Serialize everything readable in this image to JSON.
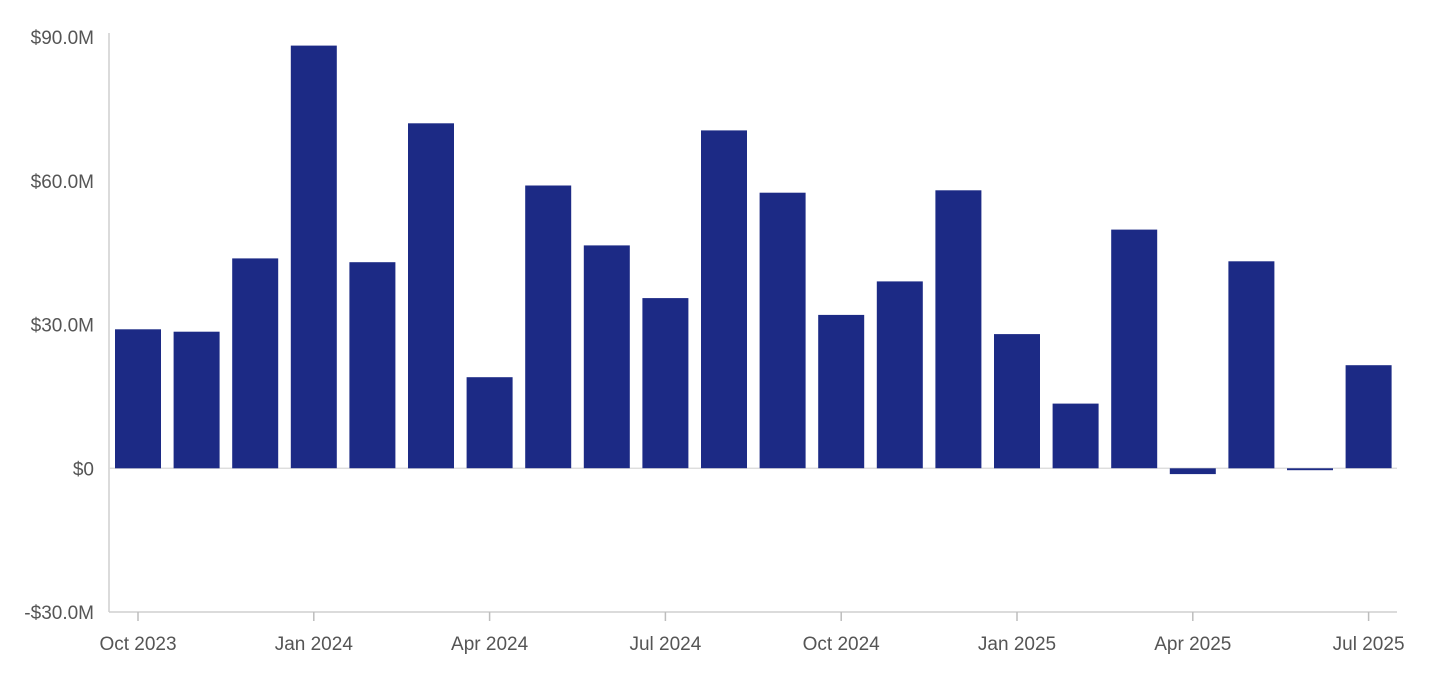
{
  "chart_data": {
    "type": "bar",
    "title": "",
    "xlabel": "",
    "ylabel": "",
    "ylim": [
      -30,
      90
    ],
    "y_unit": "$M",
    "grid": false,
    "bar_color": "#1c2a85",
    "y_ticks": [
      {
        "value": 90,
        "label": "$90.0M"
      },
      {
        "value": 60,
        "label": "$60.0M"
      },
      {
        "value": 30,
        "label": "$30.0M"
      },
      {
        "value": 0,
        "label": "$0"
      },
      {
        "value": -30,
        "label": "-$30.0M"
      }
    ],
    "x_ticks": [
      {
        "date": "2023-10",
        "label": "Oct 2023"
      },
      {
        "date": "2024-01",
        "label": "Jan 2024"
      },
      {
        "date": "2024-04",
        "label": "Apr 2024"
      },
      {
        "date": "2024-07",
        "label": "Jul 2024"
      },
      {
        "date": "2024-10",
        "label": "Oct 2024"
      },
      {
        "date": "2025-01",
        "label": "Jan 2025"
      },
      {
        "date": "2025-04",
        "label": "Apr 2025"
      },
      {
        "date": "2025-07",
        "label": "Jul 2025"
      }
    ],
    "x": [
      "2023-10",
      "2023-11",
      "2023-12",
      "2024-01",
      "2024-02",
      "2024-03",
      "2024-04",
      "2024-05",
      "2024-06",
      "2024-07",
      "2024-08",
      "2024-09",
      "2024-10",
      "2024-11",
      "2024-12",
      "2025-01",
      "2025-02",
      "2025-03",
      "2025-04",
      "2025-05",
      "2025-06",
      "2025-07"
    ],
    "values": [
      29.0,
      28.5,
      43.8,
      88.2,
      43.0,
      72.0,
      19.0,
      59.0,
      46.5,
      35.5,
      70.5,
      57.5,
      32.0,
      39.0,
      58.0,
      28.0,
      13.5,
      49.8,
      -1.2,
      43.2,
      -0.4,
      21.5
    ]
  }
}
